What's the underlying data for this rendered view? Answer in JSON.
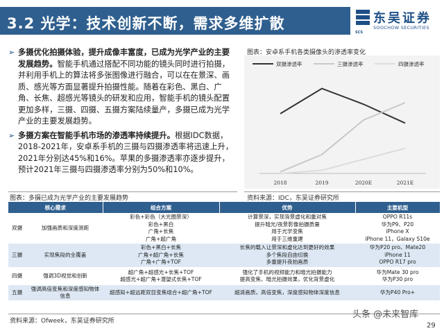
{
  "header": {
    "title": "3.2 光学：技术创新不断，需求多维扩散",
    "logo_cn": "东吴证券",
    "logo_en": "SOOCHOW SECURITIES",
    "logo_mark_text": "SCS",
    "brand_color": "#2f5f8f"
  },
  "bullets": [
    {
      "bold": "多摄优化拍摄体验，提升成像丰富度，已成为光学产业的主要发展趋势。",
      "text": "智能手机通过搭配不同功能的镜头同时进行拍摄，并利用手机上的算法将多张图像进行融合，可以在在景深、画质、感光等方面显著提升拍摄性能。随着在彩色、黑白、广角、长焦、超感光等镜头的研发和应用，智能手机的镜头配置更加多样，三摄、四摄、五摄方案陆续量产，多摄已成为光学产业的主要发展趋势。"
    },
    {
      "bold": "多摄方案在智能手机市场的渗透率持续提升。",
      "text": "根据IDC数据，2018-2021年，安卓系手机的三摄与四摄渗透率将迅速上升，2021年分别达45%和16%。苹果的多摄渗透率亦逐步提升，预计2021年三摄与四摄渗透率分别为50%和10%。"
    }
  ],
  "chart_title": "图表：安卓系手机各类摄像头的渗透率变化",
  "chart_source": "资料来源：IDC，东吴证券研究所",
  "figure_caption": "图表：多摄已成为光学产业的主要发展趋势",
  "chart_data": {
    "type": "line",
    "x": [
      "2018",
      "2019",
      "2020E",
      "2021E"
    ],
    "ylim": [
      0,
      60
    ],
    "series": [
      {
        "name": "双摄渗透率",
        "values": [
          38,
          54,
          44,
          32
        ],
        "color": "#333333"
      },
      {
        "name": "三摄渗透率",
        "values": [
          1,
          12,
          34,
          45
        ],
        "color": "#c8c8c8"
      },
      {
        "name": "四摄渗透率",
        "values": [
          0,
          2,
          9,
          16
        ],
        "color": "#dcdcdc"
      }
    ],
    "legend_position": "top",
    "grid": false
  },
  "table": {
    "headers": [
      "核心需求",
      "组合方案",
      "优势",
      "主要机型"
    ],
    "rows": [
      {
        "cat": "双摄",
        "need": "加强画质和深度测距",
        "combo": [
          "彩色+彩色（大光圈景深）",
          "彩色+黑白",
          "广角+长焦",
          "广角+超广角"
        ],
        "adv": [
          "计算景深，实现背景虚化和重对焦",
          "提升暗光/夜景影像拍摄质量",
          "用于光学变焦",
          "用于三维重建"
        ],
        "models": [
          "OPPO R11s",
          "华为P9、P20",
          "iPhone X",
          "iPhone 11，Galaxy S10e"
        ]
      },
      {
        "cat": "三摄",
        "need": "实现焦段的全覆盖",
        "combo": [
          "彩色+黑白+长焦",
          "广角+超广角+长焦",
          "广角+广角+TOF"
        ],
        "adv": [
          "长焦的载入让景深和虚化达到更好的效果",
          "多个焦段自由切换",
          "多重提升夜拍画质"
        ],
        "models": [
          "华为P20 pro、Mate20",
          "iPhone 11",
          "OPPO R17 pro"
        ]
      },
      {
        "cat": "四摄",
        "need": "强调3D视觉和创新",
        "combo": [
          "超广角+超感光+长焦+TOF",
          "超感光+超广角+潜望式长焦+TOF"
        ],
        "adv": [
          "强化了手机的视频能力和暗光拍摄能力",
          "提高变焦、暗光拍摄效果，优化背景虚化"
        ],
        "models": [
          "华为Mate 30 pro",
          "华为P30 pro"
        ]
      },
      {
        "cat": "五摄",
        "need": "强调高倍变焦和深度感知物体信息",
        "combo": [
          "超感知+超远距双目变焦组合+超广角+TOF"
        ],
        "adv": [
          "超清画质，高倍变焦，深度感知物体深度信息"
        ],
        "models": [
          "华为P40 Pro+"
        ]
      }
    ]
  },
  "table_source": "资料来源：Ofweek，东吴证券研究所",
  "watermark": "头条 @未来智库",
  "page_number": "29"
}
